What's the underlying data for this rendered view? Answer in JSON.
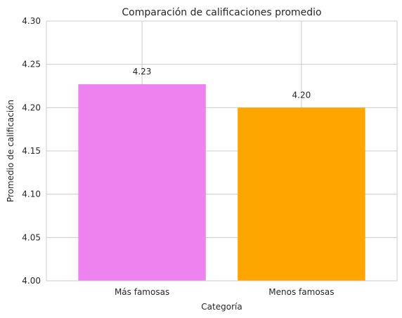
{
  "chart_data": {
    "type": "bar",
    "title": "Comparación de calificaciones promedio",
    "xlabel": "Categoría",
    "ylabel": "Promedio de calificación",
    "categories": [
      "Más famosas",
      "Menos famosas"
    ],
    "values": [
      4.227,
      4.2
    ],
    "value_labels": [
      "4.23",
      "4.20"
    ],
    "colors": [
      "#ee82ee",
      "#ffa500"
    ],
    "ylim": [
      4.0,
      4.3
    ],
    "yticks": [
      4.0,
      4.05,
      4.1,
      4.15,
      4.2,
      4.25,
      4.3
    ],
    "ytick_labels": [
      "4.00",
      "4.05",
      "4.10",
      "4.15",
      "4.20",
      "4.25",
      "4.30"
    ],
    "grid": true,
    "legend": "none"
  }
}
